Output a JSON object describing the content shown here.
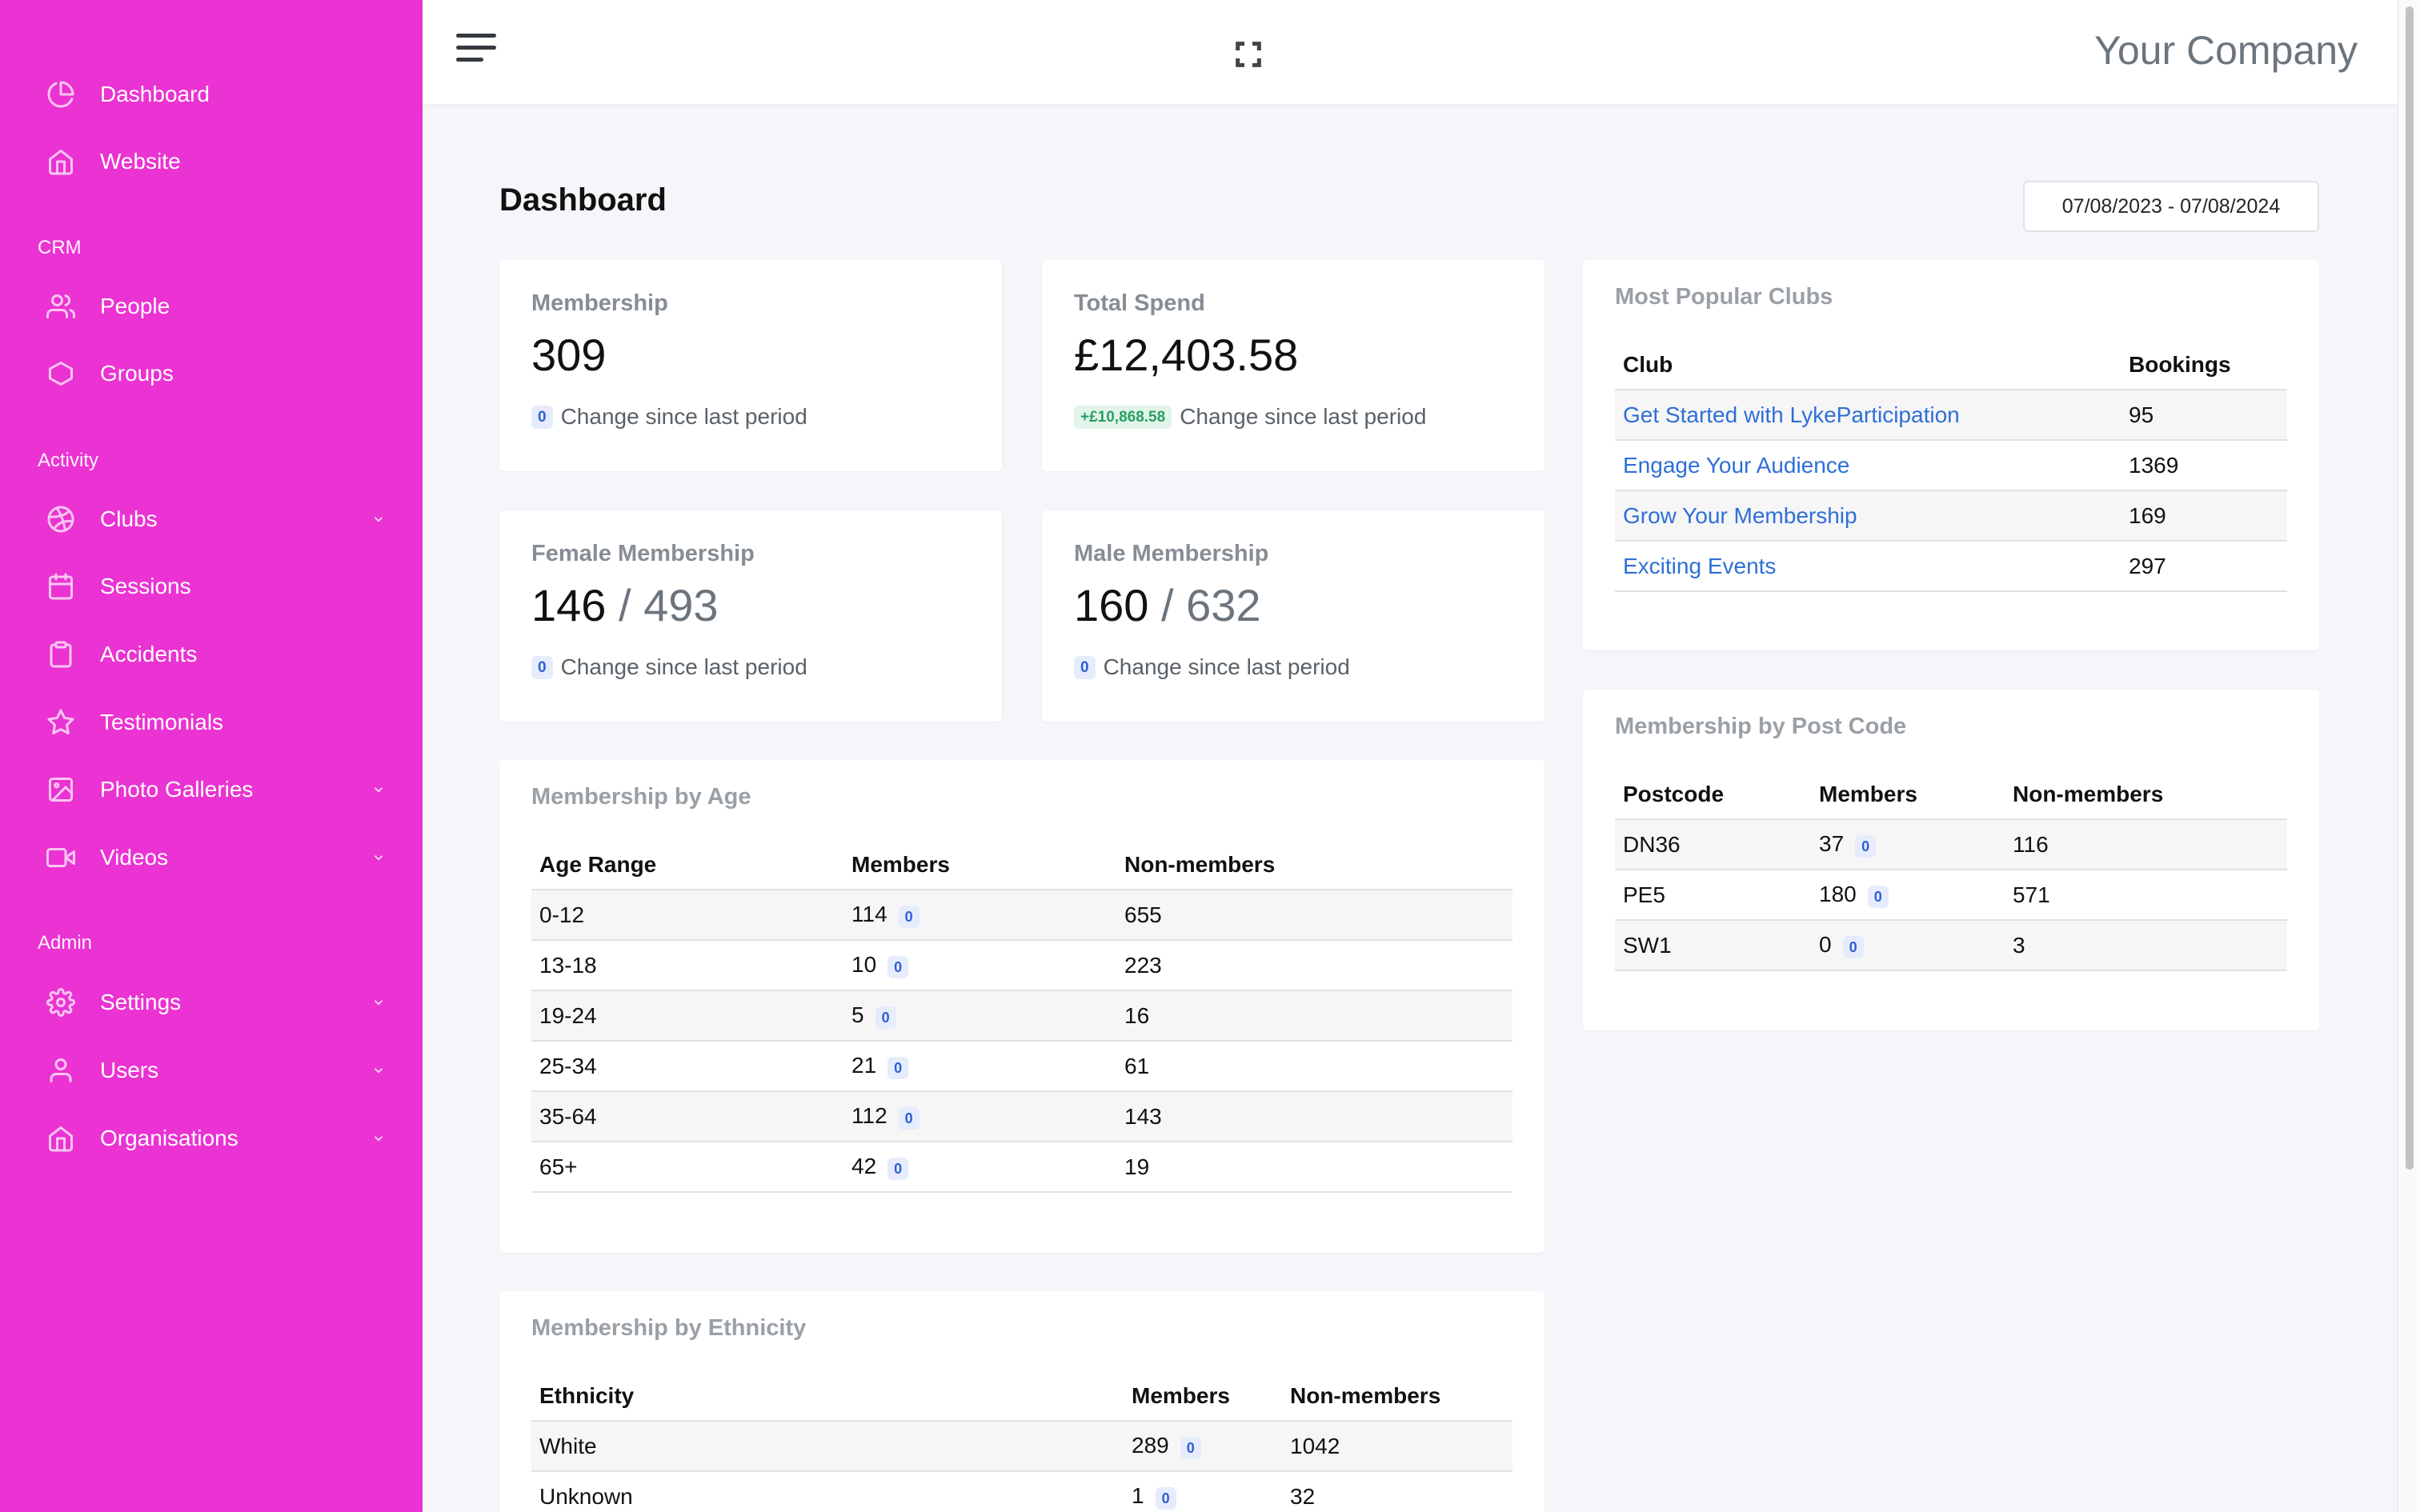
{
  "sidebar": {
    "items": [
      {
        "label": "Dashboard",
        "icon": "pie-chart-icon"
      },
      {
        "label": "Website",
        "icon": "home-icon"
      },
      {
        "label": "People",
        "icon": "users-icon"
      },
      {
        "label": "Groups",
        "icon": "hexagon-icon"
      },
      {
        "label": "Clubs",
        "icon": "dribbble-icon"
      },
      {
        "label": "Sessions",
        "icon": "calendar-icon"
      },
      {
        "label": "Accidents",
        "icon": "clipboard-icon"
      },
      {
        "label": "Testimonials",
        "icon": "star-icon"
      },
      {
        "label": "Photo Galleries",
        "icon": "image-icon"
      },
      {
        "label": "Videos",
        "icon": "video-icon"
      },
      {
        "label": "Settings",
        "icon": "gear-icon"
      },
      {
        "label": "Users",
        "icon": "user-icon"
      },
      {
        "label": "Organisations",
        "icon": "building-icon"
      }
    ],
    "sections": {
      "crm": "CRM",
      "activity": "Activity",
      "admin": "Admin"
    },
    "accent": "#ea33d2"
  },
  "header": {
    "company": "Your Company"
  },
  "page": {
    "title": "Dashboard",
    "date_range": "07/08/2023 - 07/08/2024"
  },
  "stats": {
    "membership": {
      "title": "Membership",
      "value": "309",
      "badge": "0",
      "change": "Change since last period"
    },
    "spend": {
      "title": "Total Spend",
      "value": "£12,403.58",
      "badge": "+£10,868.58",
      "change": "Change since last period"
    },
    "female": {
      "title": "Female Membership",
      "value": "146",
      "total": "/ 493",
      "badge": "0",
      "change": "Change since last period"
    },
    "male": {
      "title": "Male Membership",
      "value": "160",
      "total": "/ 632",
      "badge": "0",
      "change": "Change since last period"
    }
  },
  "clubs": {
    "title": "Most Popular Clubs",
    "headers": [
      "Club",
      "Bookings"
    ],
    "rows": [
      {
        "name": "Get Started with LykeParticipation",
        "bookings": "95"
      },
      {
        "name": "Engage Your Audience",
        "bookings": "1369"
      },
      {
        "name": "Grow Your Membership",
        "bookings": "169"
      },
      {
        "name": "Exciting Events",
        "bookings": "297"
      }
    ]
  },
  "postcode": {
    "title": "Membership by Post Code",
    "headers": [
      "Postcode",
      "Members",
      "Non-members"
    ],
    "rows": [
      {
        "code": "DN36",
        "members": "37",
        "badge": "0",
        "non": "116"
      },
      {
        "code": "PE5",
        "members": "180",
        "badge": "0",
        "non": "571"
      },
      {
        "code": "SW1",
        "members": "0",
        "badge": "0",
        "non": "3"
      }
    ]
  },
  "age": {
    "title": "Membership by Age",
    "headers": [
      "Age Range",
      "Members",
      "Non-members"
    ],
    "rows": [
      {
        "range": "0-12",
        "members": "114",
        "badge": "0",
        "non": "655"
      },
      {
        "range": "13-18",
        "members": "10",
        "badge": "0",
        "non": "223"
      },
      {
        "range": "19-24",
        "members": "5",
        "badge": "0",
        "non": "16"
      },
      {
        "range": "25-34",
        "members": "21",
        "badge": "0",
        "non": "61"
      },
      {
        "range": "35-64",
        "members": "112",
        "badge": "0",
        "non": "143"
      },
      {
        "range": "65+",
        "members": "42",
        "badge": "0",
        "non": "19"
      }
    ]
  },
  "ethnicity": {
    "title": "Membership by Ethnicity",
    "headers": [
      "Ethnicity",
      "Members",
      "Non-members"
    ],
    "rows": [
      {
        "name": "White",
        "members": "289",
        "badge": "0",
        "non": "1042"
      },
      {
        "name": "Unknown",
        "members": "1",
        "badge": "0",
        "non": "32"
      }
    ]
  }
}
